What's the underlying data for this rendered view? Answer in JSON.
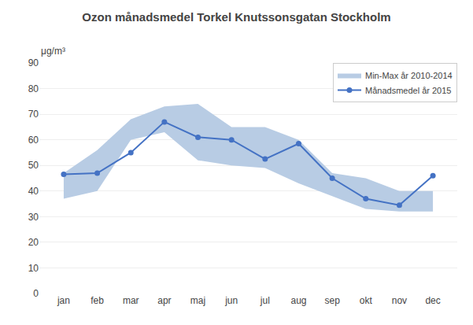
{
  "chart_data": {
    "type": "line",
    "title": "Ozon månadsmedel Torkel Knutssonsgatan Stockholm",
    "ylabel": "μg/m³",
    "categories": [
      "jan",
      "feb",
      "mar",
      "apr",
      "maj",
      "jun",
      "jul",
      "aug",
      "sep",
      "okt",
      "nov",
      "dec"
    ],
    "series": [
      {
        "name": "Min-Max år 2010-2014",
        "type": "band",
        "color": "#b8cce4",
        "low": [
          37.0,
          40.0,
          60.0,
          63.0,
          52.0,
          50.0,
          49.0,
          43.0,
          38.0,
          33.0,
          32.0,
          32.0
        ],
        "high": [
          47.0,
          56.0,
          68.0,
          73.0,
          74.0,
          65.0,
          65.0,
          60.0,
          47.0,
          45.0,
          40.0,
          40.0
        ]
      },
      {
        "name": "Månadsmedel år 2015",
        "type": "line",
        "color": "#4472c4",
        "marker": "circle",
        "values": [
          46.5,
          47.0,
          55.0,
          67.0,
          61.0,
          60.0,
          52.5,
          58.5,
          45.0,
          37.0,
          34.5,
          46.0
        ]
      }
    ],
    "ylim": [
      0,
      90
    ],
    "yticks": [
      0,
      10,
      20,
      30,
      40,
      50,
      60,
      70,
      80,
      90
    ],
    "grid": "y",
    "legend": "upper right"
  }
}
